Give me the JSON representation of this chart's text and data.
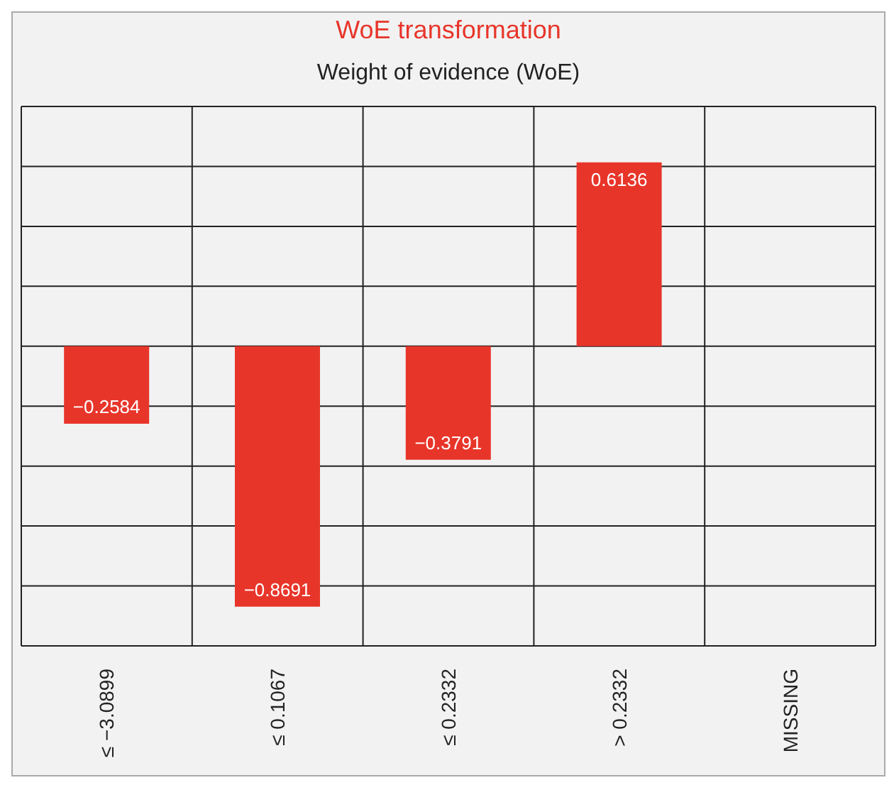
{
  "chart_data": {
    "type": "bar",
    "title": "WoE transformation",
    "subtitle": "Weight of evidence (WoE)",
    "categories": [
      "≤ −3.0899",
      "≤ 0.1067",
      "≤ 0.2332",
      "> 0.2332",
      "MISSING"
    ],
    "values": [
      -0.2584,
      -0.8691,
      -0.3791,
      0.6136,
      null
    ],
    "color": "#e8352a",
    "ylim": [
      -1,
      0.8
    ],
    "yticks": [
      {
        "value": -1,
        "label": null
      },
      {
        "value": -0.8,
        "label": null
      },
      {
        "value": -0.6,
        "label": null
      },
      {
        "value": -0.4,
        "label": null
      },
      {
        "value": -0.2,
        "label": null
      },
      {
        "value": 0,
        "label": null
      },
      {
        "value": 0.2,
        "label": null
      },
      {
        "value": 0.4,
        "label": null
      },
      {
        "value": 0.6,
        "label": null
      },
      {
        "value": 0.8,
        "label": null
      }
    ],
    "tick_labels": "x",
    "grid": true,
    "data_labels": true
  }
}
